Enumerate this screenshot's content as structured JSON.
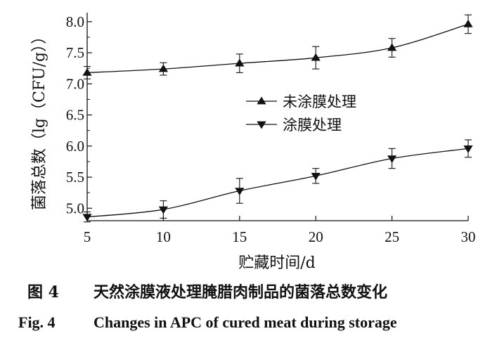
{
  "chart_data": {
    "type": "line",
    "title": "",
    "xlabel": "贮藏时间/d",
    "ylabel": "菌落总数（lg（CFU/g））",
    "x": [
      5,
      10,
      15,
      20,
      25,
      30
    ],
    "xlim": [
      5,
      30
    ],
    "ylim": [
      4.8,
      8.1
    ],
    "xticks": [
      "5",
      "10",
      "15",
      "20",
      "25",
      "30"
    ],
    "yticks": [
      "5.0",
      "5.5",
      "6.0",
      "6.5",
      "7.0",
      "7.5",
      "8.0"
    ],
    "grid": false,
    "legend_position": "center-right",
    "series": [
      {
        "name": "未涂膜处理",
        "marker": "triangle-up",
        "values": [
          7.18,
          7.24,
          7.33,
          7.42,
          7.58,
          7.96
        ],
        "errors": [
          0.1,
          0.1,
          0.15,
          0.18,
          0.15,
          0.15
        ]
      },
      {
        "name": "涂膜处理",
        "marker": "triangle-down",
        "values": [
          4.86,
          4.98,
          5.28,
          5.52,
          5.8,
          5.96
        ],
        "errors": [
          0.08,
          0.14,
          0.2,
          0.12,
          0.16,
          0.14
        ]
      }
    ]
  },
  "caption": {
    "cn_label": "图 4",
    "cn_text": "天然涂膜液处理腌腊肉制品的菌落总数变化",
    "en_label": "Fig. 4",
    "en_text": "Changes in APC of cured meat during storage"
  },
  "colors": {
    "line": "#111111",
    "background": "#ffffff"
  }
}
